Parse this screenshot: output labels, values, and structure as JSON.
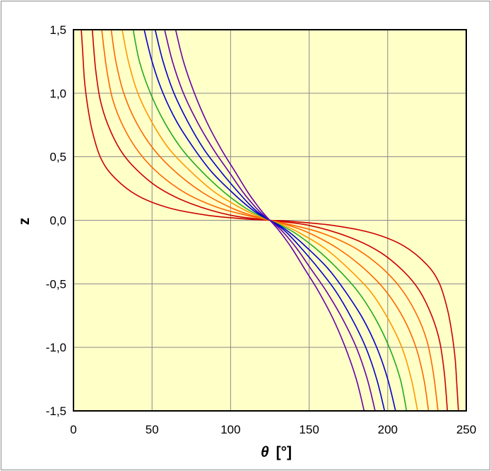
{
  "chart_data": {
    "type": "line",
    "xlabel": {
      "symbol": "θ",
      "unit": "[°]"
    },
    "ylabel": "z",
    "xlim": [
      0,
      250
    ],
    "ylim": [
      -1.5,
      1.5
    ],
    "x_ticks": [
      "0",
      "50",
      "100",
      "150",
      "200",
      "250"
    ],
    "y_ticks": [
      "1,5",
      "1,0",
      "0,5",
      "0,0",
      "-0,5",
      "-1,0",
      "-1,5"
    ],
    "grid": true,
    "plot_background": "#ffffc8",
    "center": {
      "x": 125,
      "y": 0
    },
    "series": [
      {
        "color": "#cc0000",
        "points": [
          [
            5,
            1.5
          ],
          [
            6,
            1.3
          ],
          [
            7,
            1.1
          ],
          [
            9,
            0.9
          ],
          [
            12,
            0.7
          ],
          [
            17,
            0.5
          ],
          [
            25,
            0.35
          ],
          [
            40,
            0.2
          ],
          [
            60,
            0.1
          ],
          [
            85,
            0.04
          ],
          [
            110,
            0.01
          ],
          [
            125,
            0
          ],
          [
            140,
            -0.01
          ],
          [
            165,
            -0.04
          ],
          [
            190,
            -0.1
          ],
          [
            210,
            -0.2
          ],
          [
            225,
            -0.35
          ],
          [
            233,
            -0.5
          ],
          [
            238,
            -0.7
          ],
          [
            241,
            -0.9
          ],
          [
            243,
            -1.1
          ],
          [
            244,
            -1.3
          ],
          [
            245,
            -1.5
          ]
        ]
      },
      {
        "color": "#cc0000",
        "points": [
          [
            12,
            1.5
          ],
          [
            14,
            1.2
          ],
          [
            17,
            0.95
          ],
          [
            22,
            0.75
          ],
          [
            30,
            0.55
          ],
          [
            40,
            0.4
          ],
          [
            55,
            0.25
          ],
          [
            75,
            0.13
          ],
          [
            100,
            0.04
          ],
          [
            125,
            0
          ],
          [
            150,
            -0.04
          ],
          [
            175,
            -0.13
          ],
          [
            195,
            -0.25
          ],
          [
            210,
            -0.4
          ],
          [
            220,
            -0.55
          ],
          [
            228,
            -0.75
          ],
          [
            233,
            -0.95
          ],
          [
            236,
            -1.2
          ],
          [
            238,
            -1.5
          ]
        ]
      },
      {
        "color": "#ff6600",
        "points": [
          [
            18,
            1.5
          ],
          [
            21,
            1.2
          ],
          [
            25,
            0.95
          ],
          [
            32,
            0.73
          ],
          [
            42,
            0.53
          ],
          [
            55,
            0.36
          ],
          [
            72,
            0.21
          ],
          [
            92,
            0.1
          ],
          [
            110,
            0.04
          ],
          [
            125,
            0
          ],
          [
            140,
            -0.04
          ],
          [
            158,
            -0.1
          ],
          [
            178,
            -0.21
          ],
          [
            195,
            -0.36
          ],
          [
            208,
            -0.53
          ],
          [
            218,
            -0.73
          ],
          [
            225,
            -0.95
          ],
          [
            229,
            -1.2
          ],
          [
            232,
            -1.5
          ]
        ]
      },
      {
        "color": "#ff6600",
        "points": [
          [
            24,
            1.5
          ],
          [
            27,
            1.25
          ],
          [
            32,
            1.0
          ],
          [
            40,
            0.77
          ],
          [
            51,
            0.56
          ],
          [
            65,
            0.38
          ],
          [
            82,
            0.22
          ],
          [
            100,
            0.1
          ],
          [
            113,
            0.04
          ],
          [
            125,
            0
          ],
          [
            137,
            -0.04
          ],
          [
            150,
            -0.1
          ],
          [
            168,
            -0.22
          ],
          [
            185,
            -0.38
          ],
          [
            199,
            -0.56
          ],
          [
            210,
            -0.77
          ],
          [
            218,
            -1.0
          ],
          [
            223,
            -1.25
          ],
          [
            226,
            -1.5
          ]
        ]
      },
      {
        "color": "#ff9900",
        "points": [
          [
            31,
            1.5
          ],
          [
            35,
            1.25
          ],
          [
            41,
            1.0
          ],
          [
            50,
            0.77
          ],
          [
            61,
            0.56
          ],
          [
            75,
            0.38
          ],
          [
            90,
            0.22
          ],
          [
            106,
            0.1
          ],
          [
            116,
            0.04
          ],
          [
            125,
            0
          ],
          [
            134,
            -0.04
          ],
          [
            144,
            -0.1
          ],
          [
            160,
            -0.22
          ],
          [
            175,
            -0.38
          ],
          [
            189,
            -0.56
          ],
          [
            200,
            -0.77
          ],
          [
            209,
            -1.0
          ],
          [
            215,
            -1.25
          ],
          [
            219,
            -1.5
          ]
        ]
      },
      {
        "color": "#22aa22",
        "points": [
          [
            38,
            1.5
          ],
          [
            42,
            1.25
          ],
          [
            49,
            1.0
          ],
          [
            58,
            0.77
          ],
          [
            69,
            0.56
          ],
          [
            82,
            0.38
          ],
          [
            96,
            0.22
          ],
          [
            109,
            0.1
          ],
          [
            118,
            0.04
          ],
          [
            125,
            0
          ],
          [
            132,
            -0.04
          ],
          [
            141,
            -0.1
          ],
          [
            154,
            -0.22
          ],
          [
            168,
            -0.38
          ],
          [
            181,
            -0.56
          ],
          [
            192,
            -0.77
          ],
          [
            201,
            -1.0
          ],
          [
            208,
            -1.25
          ],
          [
            212,
            -1.5
          ]
        ]
      },
      {
        "color": "#0000cc",
        "points": [
          [
            45,
            1.5
          ],
          [
            50,
            1.25
          ],
          [
            57,
            1.0
          ],
          [
            66,
            0.77
          ],
          [
            77,
            0.56
          ],
          [
            88,
            0.38
          ],
          [
            101,
            0.22
          ],
          [
            112,
            0.1
          ],
          [
            119,
            0.04
          ],
          [
            125,
            0
          ],
          [
            131,
            -0.04
          ],
          [
            138,
            -0.1
          ],
          [
            149,
            -0.22
          ],
          [
            162,
            -0.38
          ],
          [
            173,
            -0.56
          ],
          [
            184,
            -0.77
          ],
          [
            193,
            -1.0
          ],
          [
            200,
            -1.25
          ],
          [
            205,
            -1.5
          ]
        ]
      },
      {
        "color": "#0000cc",
        "points": [
          [
            52,
            1.5
          ],
          [
            57,
            1.25
          ],
          [
            64,
            1.0
          ],
          [
            73,
            0.77
          ],
          [
            83,
            0.56
          ],
          [
            94,
            0.38
          ],
          [
            105,
            0.22
          ],
          [
            114,
            0.1
          ],
          [
            120,
            0.04
          ],
          [
            125,
            0
          ],
          [
            130,
            -0.04
          ],
          [
            136,
            -0.1
          ],
          [
            145,
            -0.22
          ],
          [
            156,
            -0.38
          ],
          [
            167,
            -0.56
          ],
          [
            177,
            -0.77
          ],
          [
            186,
            -1.0
          ],
          [
            193,
            -1.25
          ],
          [
            198,
            -1.5
          ]
        ]
      },
      {
        "color": "#6600aa",
        "points": [
          [
            58,
            1.5
          ],
          [
            63,
            1.25
          ],
          [
            70,
            1.0
          ],
          [
            79,
            0.77
          ],
          [
            89,
            0.56
          ],
          [
            99,
            0.38
          ],
          [
            108,
            0.22
          ],
          [
            116,
            0.1
          ],
          [
            121,
            0.04
          ],
          [
            125,
            0
          ],
          [
            129,
            -0.04
          ],
          [
            134,
            -0.1
          ],
          [
            142,
            -0.22
          ],
          [
            151,
            -0.38
          ],
          [
            161,
            -0.56
          ],
          [
            171,
            -0.77
          ],
          [
            180,
            -1.0
          ],
          [
            187,
            -1.25
          ],
          [
            192,
            -1.5
          ]
        ]
      },
      {
        "color": "#6600aa",
        "points": [
          [
            65,
            1.5
          ],
          [
            70,
            1.25
          ],
          [
            77,
            1.0
          ],
          [
            85,
            0.77
          ],
          [
            94,
            0.56
          ],
          [
            103,
            0.38
          ],
          [
            111,
            0.22
          ],
          [
            118,
            0.1
          ],
          [
            122,
            0.04
          ],
          [
            125,
            0
          ],
          [
            128,
            -0.04
          ],
          [
            132,
            -0.1
          ],
          [
            139,
            -0.22
          ],
          [
            147,
            -0.38
          ],
          [
            156,
            -0.56
          ],
          [
            165,
            -0.77
          ],
          [
            173,
            -1.0
          ],
          [
            180,
            -1.25
          ],
          [
            185,
            -1.5
          ]
        ]
      }
    ]
  }
}
